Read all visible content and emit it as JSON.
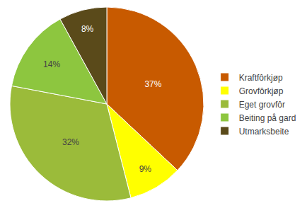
{
  "chart_data": {
    "type": "pie",
    "categories": [
      "Kraftfôrkjøp",
      "Grovfôrkjøp",
      "Eget grovfôr",
      "Beiting på gard",
      "Utmarksbeite"
    ],
    "values": [
      37,
      9,
      32,
      14,
      8
    ],
    "value_labels": [
      "37%",
      "9%",
      "32%",
      "14%",
      "8%"
    ],
    "colors": [
      "#C85A00",
      "#FFFF00",
      "#9BBB3A",
      "#8DC63F",
      "#5A4A1A"
    ],
    "data_labels": true,
    "legend": "right"
  }
}
